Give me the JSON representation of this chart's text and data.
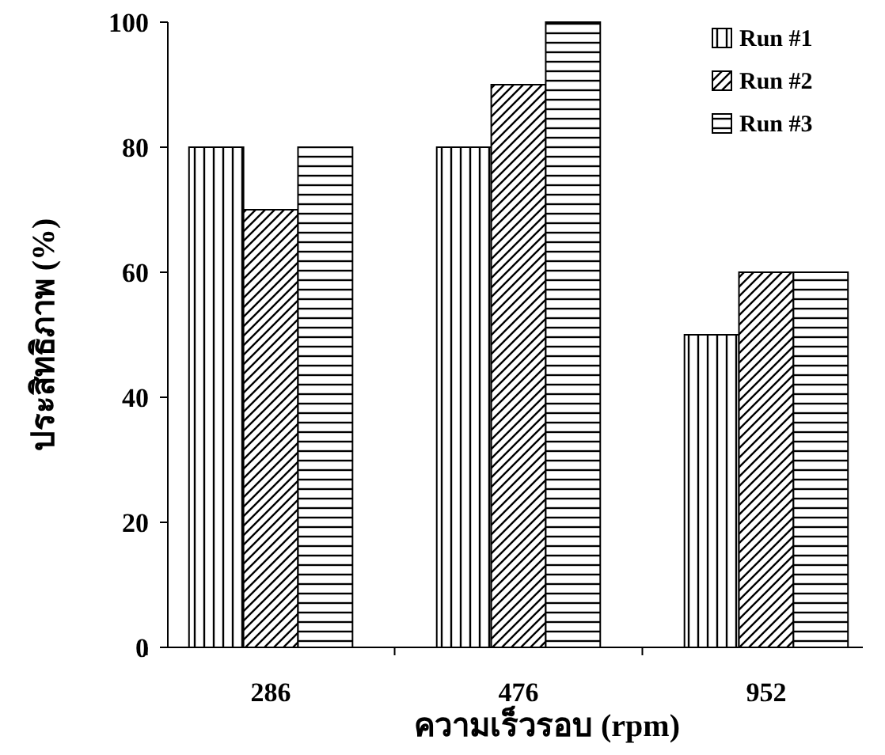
{
  "chart_data": {
    "type": "bar",
    "xlabel": "ความเร็วรอบ (rpm)",
    "ylabel": "ประสิทธิภาพ (%)",
    "categories": [
      "286",
      "476",
      "952"
    ],
    "series": [
      {
        "name": "Run #1",
        "color": "#000000",
        "values": [
          80,
          80,
          50
        ]
      },
      {
        "name": "Run #2",
        "color": "#000000",
        "values": [
          70,
          90,
          60
        ]
      },
      {
        "name": "Run #3",
        "color": "#000000",
        "values": [
          80,
          100,
          60
        ]
      }
    ],
    "ylim": [
      0,
      100
    ],
    "yticks": [
      0,
      20,
      40,
      60,
      80,
      100
    ],
    "legend": "top right"
  }
}
